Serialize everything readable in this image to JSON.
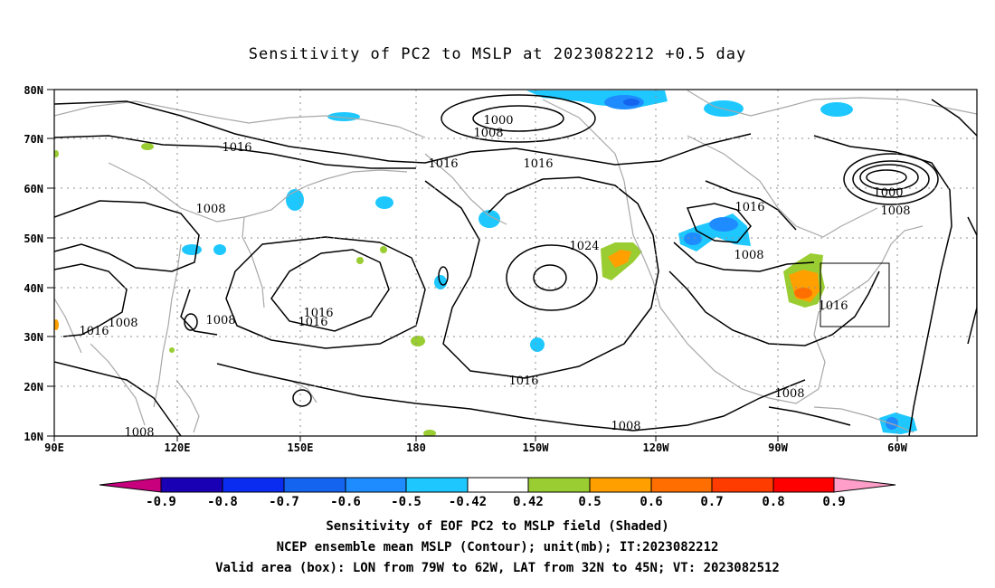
{
  "title": "Sensitivity of PC2 to MSLP at 2023082212 +0.5 day",
  "map": {
    "lon_labels": [
      "90E",
      "120E",
      "150E",
      "180",
      "150W",
      "120W",
      "90W",
      "60W"
    ],
    "lat_labels": [
      "80N",
      "70N",
      "60N",
      "50N",
      "40N",
      "30N",
      "20N",
      "10N"
    ],
    "contour_labels": [
      "1000",
      "1008",
      "1016",
      "1016",
      "1016",
      "1008",
      "1016",
      "1016",
      "1008",
      "1016",
      "1008",
      "1024",
      "1016",
      "1016",
      "1008",
      "1016",
      "1008",
      "1000",
      "1008",
      "1008",
      "1008"
    ],
    "valid_box": {
      "lon_west": -79,
      "lon_east": -62,
      "lat_south": 32,
      "lat_north": 45
    },
    "colors": {
      "contour": "#000000",
      "coastline": "#a8a8a8",
      "grid": "#8c8c8c"
    }
  },
  "colorbar": {
    "labels": [
      "-0.9",
      "-0.8",
      "-0.7",
      "-0.6",
      "-0.5",
      "-0.42",
      "0.42",
      "0.5",
      "0.6",
      "0.7",
      "0.8",
      "0.9"
    ],
    "colors": [
      "#c8007e",
      "#1a00b4",
      "#0a2bf0",
      "#1464f0",
      "#1e8cff",
      "#1ec8ff",
      "#ffffff",
      "#9acd32",
      "#ffa000",
      "#ff6e00",
      "#ff3c00",
      "#ff0000",
      "#ff9ec8"
    ]
  },
  "captions": {
    "line1": "Sensitivity of EOF PC2 to MSLP field (Shaded)",
    "line2": "NCEP ensemble mean MSLP (Contour); unit(mb); IT:2023082212",
    "line3": "Valid area (box): LON from 79W to 62W, LAT from 32N to 45N; VT: 2023082512"
  }
}
